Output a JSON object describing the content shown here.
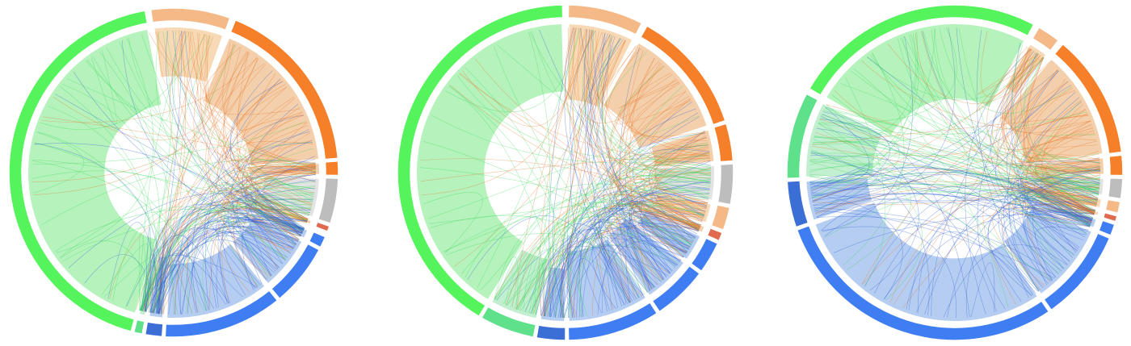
{
  "colors": {
    "green": "#55f45c",
    "green_fill": "#a8f0b0",
    "teal": "#5fe08a",
    "teal_fill": "#b7ecc8",
    "peach": "#f4b987",
    "peach_fill": "#f6d3a8",
    "orange": "#f67f2a",
    "orange_fill": "#f2c79c",
    "gray": "#bdbdbd",
    "gray_fill": "#dedede",
    "red": "#e06a4e",
    "blue": "#3f7ef2",
    "blue_fill": "#a9c4f0",
    "navy": "#3b6fd6",
    "line_green": "#3ad95a",
    "line_orange": "#e8772a",
    "line_blue": "#2a5ed8"
  },
  "chord_diagrams": [
    {
      "segments": [
        {
          "color": "green",
          "fill": "green_fill",
          "start": 195,
          "end": 350
        },
        {
          "color": "peach",
          "fill": "peach_fill",
          "start": 352,
          "end": 20
        },
        {
          "color": "orange",
          "fill": "orange_fill",
          "start": 22,
          "end": 85
        },
        {
          "color": "orange",
          "fill": "orange_fill",
          "start": 86,
          "end": 91
        },
        {
          "color": "gray",
          "fill": "gray_fill",
          "start": 92,
          "end": 108
        },
        {
          "color": "red",
          "fill": "orange_fill",
          "start": 109,
          "end": 111
        },
        {
          "color": "blue",
          "fill": "blue_fill",
          "start": 113,
          "end": 117
        },
        {
          "color": "blue",
          "fill": "blue_fill",
          "start": 118,
          "end": 140
        },
        {
          "color": "blue",
          "fill": "blue_fill",
          "start": 141,
          "end": 183
        },
        {
          "color": "navy",
          "fill": "blue_fill",
          "start": 184,
          "end": 190
        },
        {
          "color": "teal",
          "fill": "teal_fill",
          "start": 191,
          "end": 194
        }
      ]
    },
    {
      "segments": [
        {
          "color": "green",
          "fill": "green_fill",
          "start": 211,
          "end": 359
        },
        {
          "color": "peach",
          "fill": "peach_fill",
          "start": 1,
          "end": 27
        },
        {
          "color": "orange",
          "fill": "orange_fill",
          "start": 29,
          "end": 72
        },
        {
          "color": "orange",
          "fill": "orange_fill",
          "start": 73,
          "end": 86
        },
        {
          "color": "gray",
          "fill": "gray_fill",
          "start": 87,
          "end": 101
        },
        {
          "color": "peach",
          "fill": "peach_fill",
          "start": 102,
          "end": 110
        },
        {
          "color": "red",
          "fill": "orange_fill",
          "start": 111,
          "end": 114
        },
        {
          "color": "blue",
          "fill": "blue_fill",
          "start": 115,
          "end": 126
        },
        {
          "color": "blue",
          "fill": "blue_fill",
          "start": 127,
          "end": 146
        },
        {
          "color": "blue",
          "fill": "blue_fill",
          "start": 147,
          "end": 179
        },
        {
          "color": "navy",
          "fill": "blue_fill",
          "start": 180,
          "end": 190
        },
        {
          "color": "teal",
          "fill": "teal_fill",
          "start": 191,
          "end": 210
        }
      ]
    },
    {
      "segments": [
        {
          "color": "green",
          "fill": "green_fill",
          "start": 300,
          "end": 28
        },
        {
          "color": "peach",
          "fill": "peach_fill",
          "start": 30,
          "end": 38
        },
        {
          "color": "orange",
          "fill": "orange_fill",
          "start": 40,
          "end": 83
        },
        {
          "color": "orange",
          "fill": "orange_fill",
          "start": 84,
          "end": 91
        },
        {
          "color": "gray",
          "fill": "gray_fill",
          "start": 92,
          "end": 99
        },
        {
          "color": "peach",
          "fill": "peach_fill",
          "start": 100,
          "end": 104
        },
        {
          "color": "red",
          "fill": "orange_fill",
          "start": 105,
          "end": 107
        },
        {
          "color": "blue",
          "fill": "blue_fill",
          "start": 108,
          "end": 112
        },
        {
          "color": "blue",
          "fill": "blue_fill",
          "start": 113,
          "end": 145
        },
        {
          "color": "blue",
          "fill": "blue_fill",
          "start": 146,
          "end": 250
        },
        {
          "color": "navy",
          "fill": "blue_fill",
          "start": 251,
          "end": 267
        },
        {
          "color": "teal",
          "fill": "teal_fill",
          "start": 268,
          "end": 298
        }
      ]
    }
  ]
}
